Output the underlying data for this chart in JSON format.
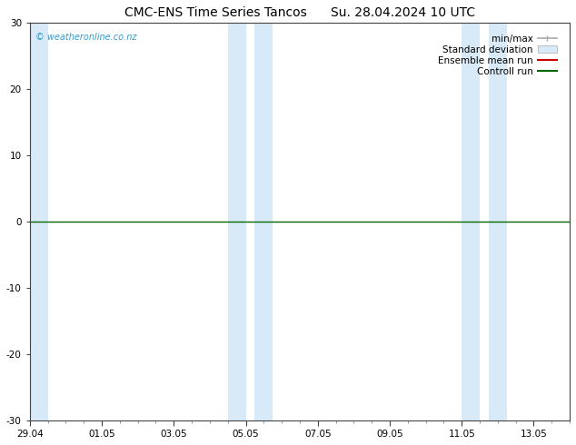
{
  "title": "CMC-ENS Time Series Tancos",
  "title2": "Su. 28.04.2024 10 UTC",
  "ylim": [
    -30,
    30
  ],
  "yticks": [
    -30,
    -20,
    -10,
    0,
    10,
    20,
    30
  ],
  "xtick_labels": [
    "29.04",
    "01.05",
    "03.05",
    "05.05",
    "07.05",
    "09.05",
    "11.05",
    "13.05"
  ],
  "xtick_positions_days": [
    0,
    2,
    4,
    6,
    8,
    10,
    12,
    14
  ],
  "xlim": [
    0,
    15
  ],
  "blue_bands": [
    [
      -0.15,
      0.5
    ],
    [
      5.5,
      6.0
    ],
    [
      6.25,
      6.75
    ],
    [
      12.0,
      12.5
    ],
    [
      12.75,
      13.25
    ]
  ],
  "zero_line_y": 0,
  "background_color": "#ffffff",
  "band_color": "#d8eaf8",
  "legend_items": [
    {
      "label": "min/max",
      "color": "#aaaaaa",
      "lw": 1.2
    },
    {
      "label": "Standard deviation",
      "color": "#d8eaf8",
      "lw": 8
    },
    {
      "label": "Ensemble mean run",
      "color": "#cc0000",
      "lw": 1.5
    },
    {
      "label": "Controll run",
      "color": "#006600",
      "lw": 1.5
    }
  ],
  "zero_line_color": "#006600",
  "watermark": "© weatheronline.co.nz",
  "watermark_color": "#3399cc",
  "title_fontsize": 10,
  "tick_fontsize": 7.5,
  "legend_fontsize": 7.5
}
